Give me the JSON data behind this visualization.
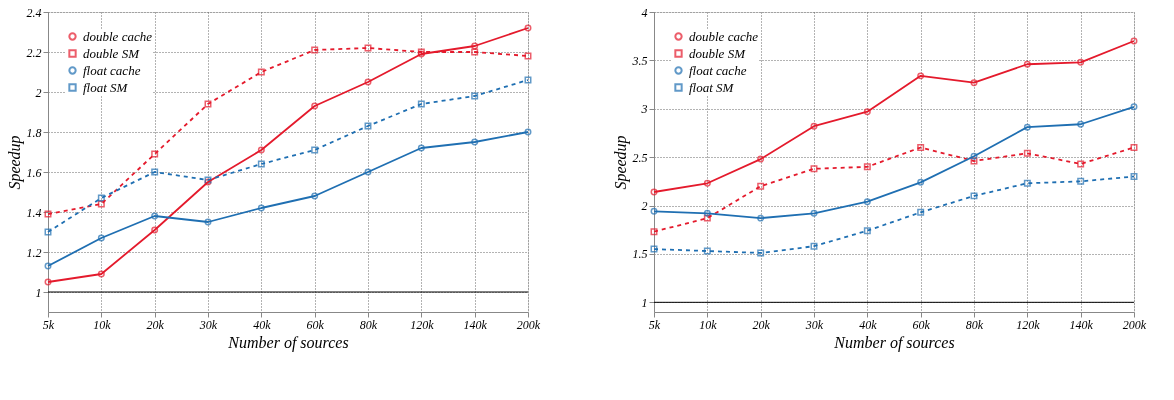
{
  "chart_data": [
    {
      "type": "line",
      "xlabel": "Number of sources",
      "ylabel": "Speedup",
      "categories": [
        "5k",
        "10k",
        "20k",
        "30k",
        "40k",
        "60k",
        "80k",
        "120k",
        "140k",
        "200k"
      ],
      "ylim": [
        0.9,
        2.4
      ],
      "yticks": [
        1,
        1.2,
        1.4,
        1.6,
        1.8,
        2,
        2.2,
        2.4
      ],
      "grid": true,
      "legend": "top left",
      "ref_lines": [
        {
          "axis": "y",
          "value": 1,
          "color": "#000000"
        }
      ],
      "series": [
        {
          "name": "double cache",
          "color": "#e41a2c",
          "marker": "circle",
          "line_style": "solid",
          "values": [
            1.05,
            1.09,
            1.31,
            1.55,
            1.71,
            1.93,
            2.05,
            2.19,
            2.23,
            2.32
          ]
        },
        {
          "name": "double SM",
          "color": "#e41a2c",
          "marker": "square",
          "line_style": "dashed",
          "values": [
            1.39,
            1.44,
            1.69,
            1.94,
            2.1,
            2.21,
            2.22,
            2.2,
            2.2,
            2.18
          ]
        },
        {
          "name": "float cache",
          "color": "#1f6fb2",
          "marker": "circle",
          "line_style": "solid",
          "values": [
            1.13,
            1.27,
            1.38,
            1.35,
            1.42,
            1.48,
            1.6,
            1.72,
            1.75,
            1.8
          ]
        },
        {
          "name": "float SM",
          "color": "#1f6fb2",
          "marker": "square",
          "line_style": "dashed",
          "values": [
            1.3,
            1.47,
            1.6,
            1.56,
            1.64,
            1.71,
            1.83,
            1.94,
            1.98,
            2.06
          ]
        }
      ]
    },
    {
      "type": "line",
      "xlabel": "Number of sources",
      "ylabel": "Speedup",
      "categories": [
        "5k",
        "10k",
        "20k",
        "30k",
        "40k",
        "60k",
        "80k",
        "120k",
        "140k",
        "200k"
      ],
      "ylim": [
        0.9,
        4
      ],
      "yticks": [
        1,
        1.5,
        2,
        2.5,
        3,
        3.5,
        4
      ],
      "grid": true,
      "legend": "top left",
      "ref_lines": [
        {
          "axis": "y",
          "value": 1,
          "color": "#000000"
        }
      ],
      "series": [
        {
          "name": "double cache",
          "color": "#e41a2c",
          "marker": "circle",
          "line_style": "solid",
          "values": [
            2.14,
            2.23,
            2.48,
            2.82,
            2.97,
            3.34,
            3.27,
            3.46,
            3.48,
            3.7
          ]
        },
        {
          "name": "double SM",
          "color": "#e41a2c",
          "marker": "square",
          "line_style": "dashed",
          "values": [
            1.73,
            1.87,
            2.2,
            2.38,
            2.4,
            2.6,
            2.46,
            2.54,
            2.43,
            2.6
          ]
        },
        {
          "name": "float cache",
          "color": "#1f6fb2",
          "marker": "circle",
          "line_style": "solid",
          "values": [
            1.94,
            1.92,
            1.87,
            1.92,
            2.04,
            2.24,
            2.51,
            2.81,
            2.84,
            3.02
          ]
        },
        {
          "name": "float SM",
          "color": "#1f6fb2",
          "marker": "square",
          "line_style": "dashed",
          "values": [
            1.55,
            1.53,
            1.51,
            1.58,
            1.74,
            1.93,
            2.1,
            2.23,
            2.25,
            2.3
          ]
        }
      ]
    }
  ]
}
